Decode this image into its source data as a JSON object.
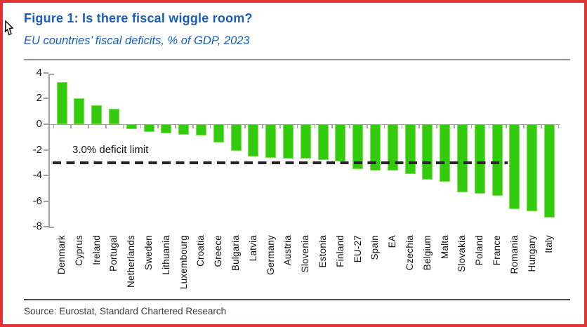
{
  "figure": {
    "title": "Figure 1: Is there fiscal wiggle room?",
    "subtitle": "EU countries’ fiscal deficits, % of GDP, 2023",
    "source": "Source: Eurostat, Standard Chartered Research"
  },
  "colors": {
    "title_blue": "#175FBD",
    "bar_green": "#33CB0E",
    "bar_green_edge": "#7FE052",
    "axis_gray": "#A3A3A3",
    "dash_black": "#262626",
    "frame_red": "#E23434"
  },
  "icons": {
    "cursor": "mouse-cursor-icon"
  },
  "chart_data": {
    "type": "bar",
    "title": "Figure 1: Is there fiscal wiggle room?",
    "subtitle": "EU countries’ fiscal deficits, % of GDP, 2023",
    "xlabel": "",
    "ylabel": "% of GDP",
    "ylim": [
      -8,
      4
    ],
    "yticks": [
      4,
      2,
      0,
      -2,
      -4,
      -6,
      -8
    ],
    "grid": false,
    "legend": "none",
    "categories": [
      "Denmark",
      "Cyprus",
      "Ireland",
      "Portugal",
      "Netherlands",
      "Sweden",
      "Lithuania",
      "Luxembourg",
      "Croatia",
      "Greece",
      "Bulgaria",
      "Latvia",
      "Germany",
      "Austria",
      "Slovenia",
      "Estonia",
      "Finland",
      "EU-27",
      "Spain",
      "EA",
      "Czechia",
      "Belgium",
      "Malta",
      "Slovakia",
      "Poland",
      "France",
      "Romania",
      "Hungary",
      "Italy"
    ],
    "values": [
      3.3,
      2.0,
      1.5,
      1.2,
      -0.4,
      -0.6,
      -0.7,
      -0.8,
      -0.9,
      -1.4,
      -2.1,
      -2.5,
      -2.6,
      -2.7,
      -2.7,
      -2.8,
      -2.9,
      -3.5,
      -3.6,
      -3.6,
      -3.9,
      -4.3,
      -4.5,
      -5.3,
      -5.4,
      -5.6,
      -6.6,
      -6.8,
      -7.3
    ],
    "reference_line": {
      "value": -3.0,
      "label": "3.0% deficit limit",
      "style": "dashed"
    }
  }
}
